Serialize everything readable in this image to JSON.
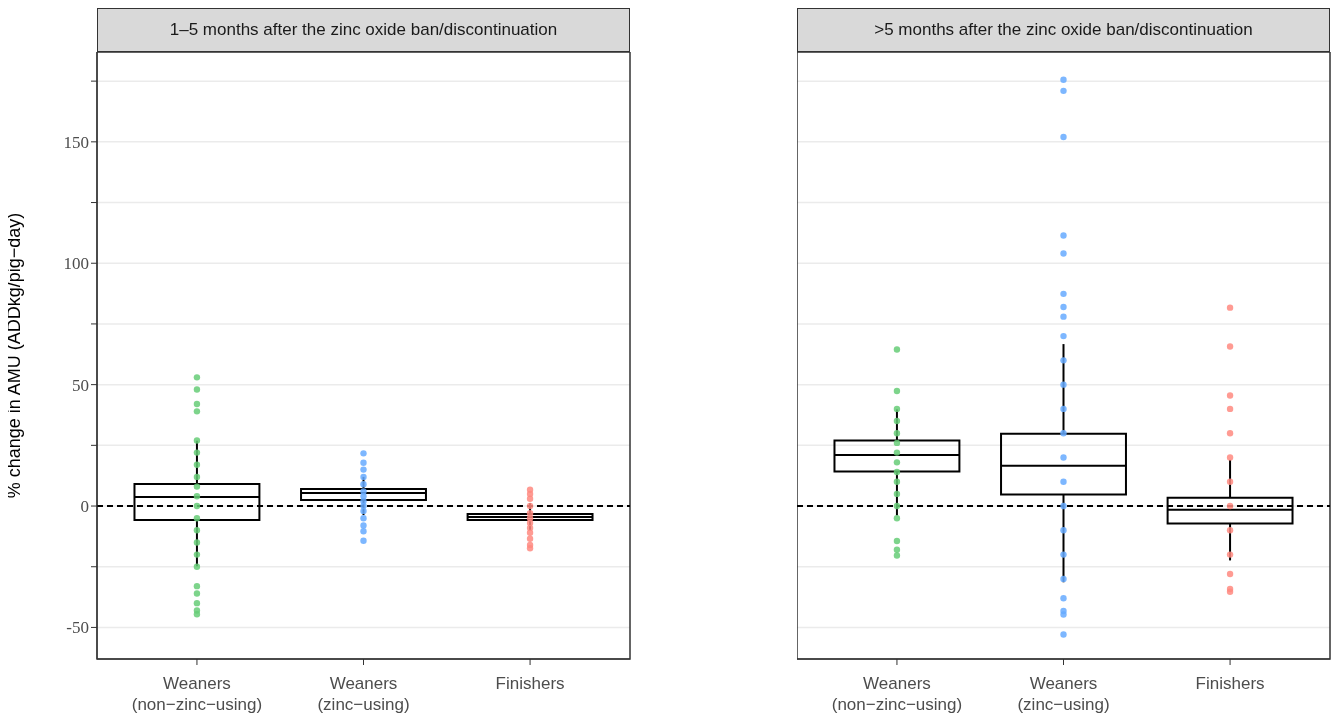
{
  "chart_data": [
    {
      "type": "box",
      "title": "1–5 months after the zinc oxide ban/discontinuation",
      "ylabel": "% change in AMU (ADDkg/pig−day)",
      "categories": [
        "Weaners\n(non−zinc−using)",
        "Weaners\n(zinc−using)",
        "Finishers"
      ],
      "boxes": [
        {
          "low": -24.8,
          "q1": -5.8,
          "median": 3.7,
          "q3": 9.1,
          "high": 26.9
        },
        {
          "low": -3.7,
          "q1": 2.5,
          "median": 5.4,
          "q3": 7,
          "high": 12
        },
        {
          "low": -9.9,
          "q1": -5.8,
          "median": -4.5,
          "q3": -3.3,
          "high": 1.2
        }
      ],
      "series": [
        {
          "type": "scatter",
          "color": "#66cc77",
          "x": [
            "Weaners\n(non−zinc−using)",
            "Weaners\n(non−zinc−using)",
            "Weaners\n(non−zinc−using)",
            "Weaners\n(non−zinc−using)",
            "Weaners\n(non−zinc−using)",
            "Weaners\n(non−zinc−using)",
            "Weaners\n(non−zinc−using)",
            "Weaners\n(non−zinc−using)",
            "Weaners\n(non−zinc−using)",
            "Weaners\n(non−zinc−using)",
            "Weaners\n(non−zinc−using)",
            "Weaners\n(non−zinc−using)",
            "Weaners\n(non−zinc−using)",
            "Weaners\n(non−zinc−using)",
            "Weaners\n(non−zinc−using)",
            "Weaners\n(non−zinc−using)",
            "Weaners\n(non−zinc−using)",
            "Weaners\n(non−zinc−using)",
            "Weaners\n(non−zinc−using)",
            "Weaners\n(non−zinc−using)",
            "Weaners\n(non−zinc−using)"
          ],
          "values": [
            53,
            48,
            42,
            39,
            27,
            22,
            17,
            12,
            8,
            4,
            0,
            -5,
            -10,
            -15,
            -20,
            -25,
            -33,
            -36,
            -40,
            -43,
            -44.6
          ]
        },
        {
          "type": "scatter",
          "color": "#66aaff",
          "x": [
            "Weaners\n(zinc−using)",
            "Weaners\n(zinc−using)",
            "Weaners\n(zinc−using)",
            "Weaners\n(zinc−using)",
            "Weaners\n(zinc−using)",
            "Weaners\n(zinc−using)",
            "Weaners\n(zinc−using)",
            "Weaners\n(zinc−using)",
            "Weaners\n(zinc−using)",
            "Weaners\n(zinc−using)",
            "Weaners\n(zinc−using)",
            "Weaners\n(zinc−using)",
            "Weaners\n(zinc−using)",
            "Weaners\n(zinc−using)"
          ],
          "values": [
            21.7,
            17.8,
            15,
            12,
            9,
            6,
            4,
            2,
            0,
            -2,
            -5,
            -8,
            -10.4,
            -14.3
          ]
        },
        {
          "type": "scatter",
          "color": "#ff8a80",
          "x": [
            "Finishers",
            "Finishers",
            "Finishers",
            "Finishers",
            "Finishers",
            "Finishers",
            "Finishers",
            "Finishers",
            "Finishers",
            "Finishers",
            "Finishers",
            "Finishers"
          ],
          "values": [
            6.7,
            5,
            3,
            0,
            -3,
            -5,
            -7,
            -9,
            -11,
            -13.5,
            -16,
            -17.4
          ]
        }
      ],
      "ref_lines": [
        {
          "axis": "y",
          "value": 0,
          "line_style": "dashed",
          "color": "#000000"
        }
      ],
      "ylim": [
        -63,
        187
      ],
      "yticks": [
        -50,
        {
          "value": -25,
          "label": null
        },
        0,
        {
          "value": 25,
          "label": null
        },
        50,
        {
          "value": 75,
          "label": null
        },
        100,
        {
          "value": 125,
          "label": null
        },
        150,
        {
          "value": 175,
          "label": null
        }
      ],
      "grid": "y",
      "legend": false
    },
    {
      "type": "box",
      "title": ">5 months after the zinc oxide ban/discontinuation",
      "categories": [
        "Weaners\n(non−zinc−using)",
        "Weaners\n(zinc−using)",
        "Finishers"
      ],
      "boxes": [
        {
          "low": -3.9,
          "q1": 14.2,
          "median": 21,
          "q3": 27,
          "high": 39.8
        },
        {
          "low": -31.4,
          "q1": 4.7,
          "median": 16.6,
          "q3": 29.8,
          "high": 66.7
        },
        {
          "low": -22.4,
          "q1": -7.2,
          "median": -1.5,
          "q3": 3.4,
          "high": 19
        }
      ],
      "series": [
        {
          "type": "scatter",
          "color": "#66cc77",
          "x": [
            "Weaners\n(non−zinc−using)",
            "Weaners\n(non−zinc−using)",
            "Weaners\n(non−zinc−using)",
            "Weaners\n(non−zinc−using)",
            "Weaners\n(non−zinc−using)",
            "Weaners\n(non−zinc−using)",
            "Weaners\n(non−zinc−using)",
            "Weaners\n(non−zinc−using)",
            "Weaners\n(non−zinc−using)",
            "Weaners\n(non−zinc−using)",
            "Weaners\n(non−zinc−using)",
            "Weaners\n(non−zinc−using)",
            "Weaners\n(non−zinc−using)",
            "Weaners\n(non−zinc−using)",
            "Weaners\n(non−zinc−using)",
            "Weaners\n(non−zinc−using)"
          ],
          "values": [
            64.5,
            47.4,
            40,
            35,
            30,
            26,
            22,
            18,
            14,
            10,
            5,
            0,
            -5,
            -14.4,
            -18,
            -20.4
          ]
        },
        {
          "type": "scatter",
          "color": "#66aaff",
          "x": [
            "Weaners\n(zinc−using)",
            "Weaners\n(zinc−using)",
            "Weaners\n(zinc−using)",
            "Weaners\n(zinc−using)",
            "Weaners\n(zinc−using)",
            "Weaners\n(zinc−using)",
            "Weaners\n(zinc−using)",
            "Weaners\n(zinc−using)",
            "Weaners\n(zinc−using)",
            "Weaners\n(zinc−using)",
            "Weaners\n(zinc−using)",
            "Weaners\n(zinc−using)",
            "Weaners\n(zinc−using)",
            "Weaners\n(zinc−using)",
            "Weaners\n(zinc−using)",
            "Weaners\n(zinc−using)",
            "Weaners\n(zinc−using)",
            "Weaners\n(zinc−using)",
            "Weaners\n(zinc−using)",
            "Weaners\n(zinc−using)",
            "Weaners\n(zinc−using)",
            "Weaners\n(zinc−using)",
            "Weaners\n(zinc−using)"
          ],
          "values": [
            175.6,
            171,
            152,
            111.4,
            104,
            87.4,
            82,
            78,
            70,
            60,
            50,
            40,
            30,
            20,
            10,
            0,
            -10,
            -20,
            -30,
            -38,
            -43.2,
            -44.7,
            -52.9
          ]
        },
        {
          "type": "scatter",
          "color": "#ff8a80",
          "x": [
            "Finishers",
            "Finishers",
            "Finishers",
            "Finishers",
            "Finishers",
            "Finishers",
            "Finishers",
            "Finishers",
            "Finishers",
            "Finishers",
            "Finishers",
            "Finishers",
            "Finishers"
          ],
          "values": [
            81.7,
            65.7,
            45.5,
            40,
            30,
            20,
            10,
            0,
            -10,
            -20,
            -28,
            -34.2,
            -35.3
          ]
        }
      ],
      "ref_lines": [
        {
          "axis": "y",
          "value": 0,
          "line_style": "dashed",
          "color": "#000000"
        }
      ],
      "ylim": [
        -63,
        187
      ],
      "yticks": [
        -50,
        {
          "value": -25,
          "label": null
        },
        0,
        {
          "value": 25,
          "label": null
        },
        50,
        {
          "value": 75,
          "label": null
        },
        100,
        {
          "value": 125,
          "label": null
        },
        150,
        {
          "value": 175,
          "label": null
        }
      ],
      "grid": "y",
      "legend": false,
      "tick_labels": "x"
    }
  ]
}
